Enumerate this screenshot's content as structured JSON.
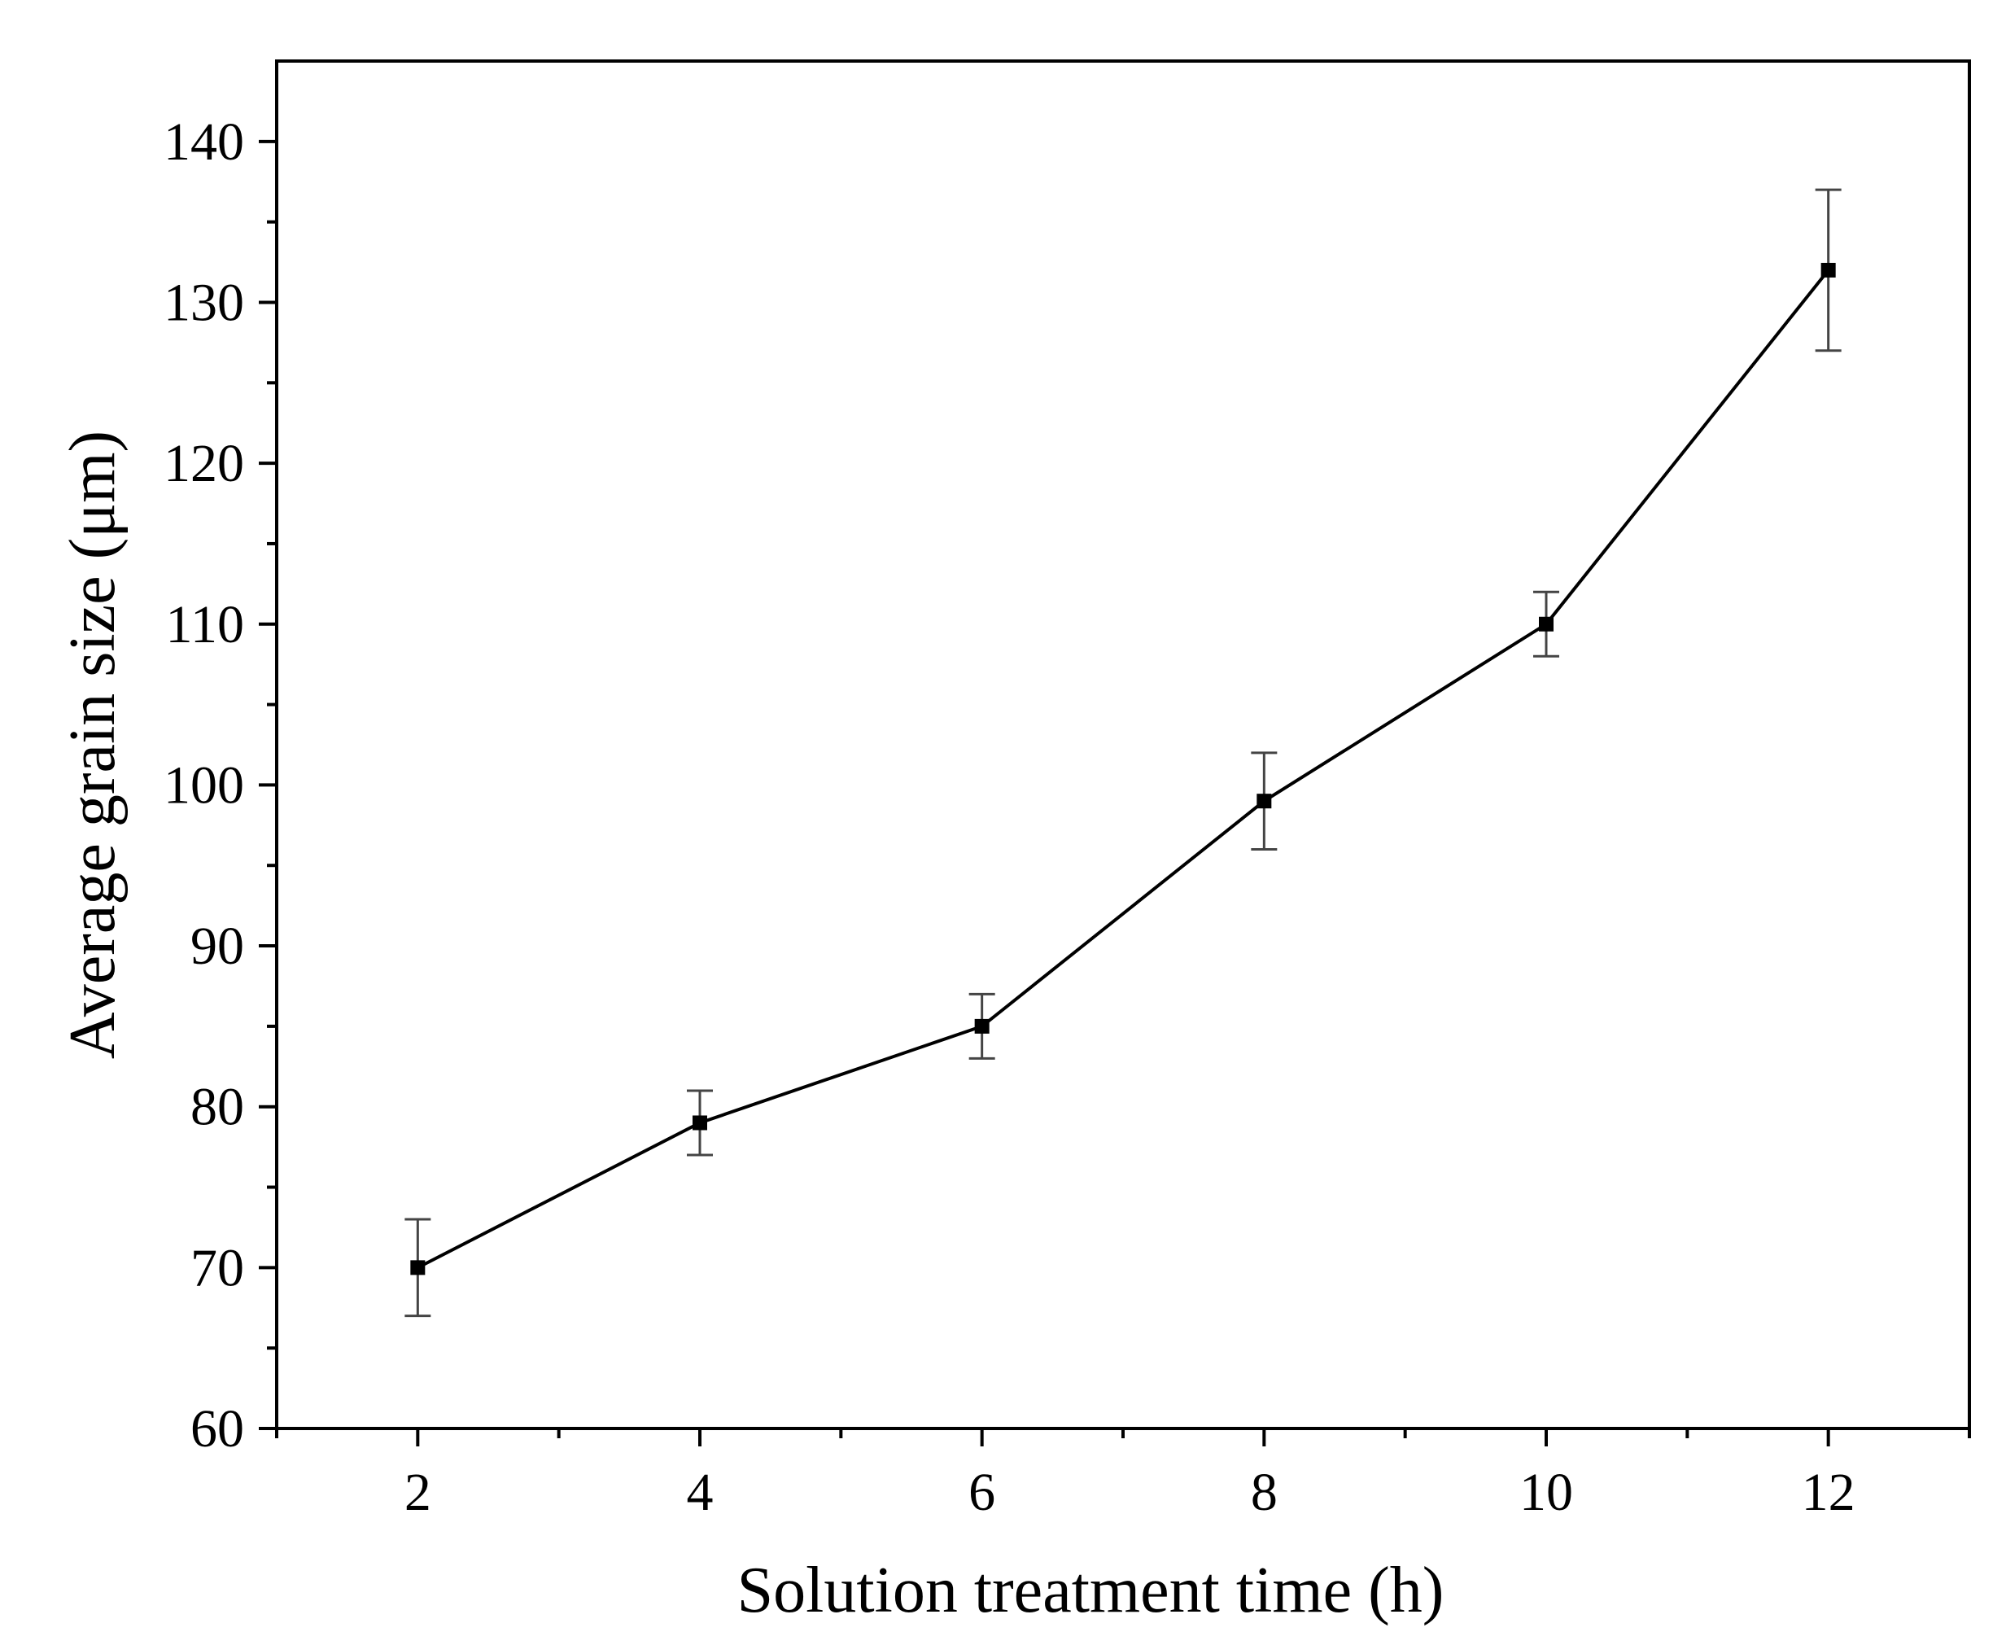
{
  "chart_data": {
    "type": "line",
    "title": "",
    "xlabel": "Solution treatment time (h)",
    "ylabel": "Average grain size (μm)",
    "xlim": [
      1,
      13
    ],
    "ylim": [
      60,
      145
    ],
    "xticks": [
      2,
      4,
      6,
      8,
      10,
      12
    ],
    "x_minor_ticks": [
      1,
      3,
      5,
      7,
      9,
      11,
      13
    ],
    "yticks": [
      60,
      70,
      80,
      90,
      100,
      110,
      120,
      130,
      140
    ],
    "y_minor_ticks": [
      65,
      75,
      85,
      95,
      105,
      115,
      125,
      135
    ],
    "grid": false,
    "legend": "none",
    "series": [
      {
        "name": "Average grain size",
        "x": [
          2,
          4,
          6,
          8,
          10,
          12
        ],
        "y": [
          70,
          79,
          85,
          99,
          110,
          132
        ],
        "error": [
          3,
          2,
          2,
          3,
          2,
          5
        ],
        "marker": "square",
        "color": "#000000"
      }
    ]
  }
}
